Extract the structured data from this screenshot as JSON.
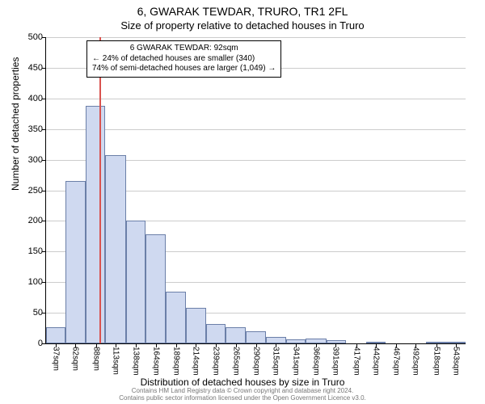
{
  "title_main": "6, GWARAK TEWDAR, TRURO, TR1 2FL",
  "title_sub": "Size of property relative to detached houses in Truro",
  "ylabel": "Number of detached properties",
  "xlabel": "Distribution of detached houses by size in Truro",
  "footer_line1": "Contains HM Land Registry data © Crown copyright and database right 2024.",
  "footer_line2": "Contains public sector information licensed under the Open Government Licence v3.0.",
  "chart": {
    "type": "histogram",
    "x_min": 25,
    "x_max": 555,
    "y_min": 0,
    "y_max": 500,
    "ytick_step": 50,
    "bar_color": "#cfd9f0",
    "bar_border": "#6b7fa8",
    "grid_color": "#cccccc",
    "reference_line": {
      "x_value": 92,
      "color": "#d9534f"
    },
    "xticks": [
      37,
      62,
      88,
      113,
      138,
      164,
      189,
      214,
      239,
      265,
      290,
      315,
      341,
      366,
      391,
      417,
      442,
      467,
      492,
      518,
      543
    ],
    "xtick_labels": [
      "37sqm",
      "62sqm",
      "88sqm",
      "113sqm",
      "138sqm",
      "164sqm",
      "189sqm",
      "214sqm",
      "239sqm",
      "265sqm",
      "290sqm",
      "315sqm",
      "341sqm",
      "366sqm",
      "391sqm",
      "417sqm",
      "442sqm",
      "467sqm",
      "492sqm",
      "518sqm",
      "543sqm"
    ],
    "bars": [
      {
        "x0": 25,
        "x1": 50,
        "y": 27
      },
      {
        "x0": 50,
        "x1": 75,
        "y": 265
      },
      {
        "x0": 75,
        "x1": 100,
        "y": 388
      },
      {
        "x0": 100,
        "x1": 126,
        "y": 307
      },
      {
        "x0": 126,
        "x1": 151,
        "y": 200
      },
      {
        "x0": 151,
        "x1": 176,
        "y": 178
      },
      {
        "x0": 176,
        "x1": 202,
        "y": 85
      },
      {
        "x0": 202,
        "x1": 227,
        "y": 58
      },
      {
        "x0": 227,
        "x1": 252,
        "y": 32
      },
      {
        "x0": 252,
        "x1": 277,
        "y": 27
      },
      {
        "x0": 277,
        "x1": 303,
        "y": 20
      },
      {
        "x0": 303,
        "x1": 328,
        "y": 11
      },
      {
        "x0": 328,
        "x1": 353,
        "y": 7
      },
      {
        "x0": 353,
        "x1": 379,
        "y": 8
      },
      {
        "x0": 379,
        "x1": 404,
        "y": 5
      },
      {
        "x0": 404,
        "x1": 429,
        "y": 0
      },
      {
        "x0": 429,
        "x1": 454,
        "y": 2
      },
      {
        "x0": 454,
        "x1": 480,
        "y": 0
      },
      {
        "x0": 480,
        "x1": 505,
        "y": 0
      },
      {
        "x0": 505,
        "x1": 530,
        "y": 2
      },
      {
        "x0": 530,
        "x1": 555,
        "y": 3
      }
    ]
  },
  "annotation": {
    "line1": "6 GWARAK TEWDAR: 92sqm",
    "line2": "← 24% of detached houses are smaller (340)",
    "line3": "74% of semi-detached houses are larger (1,049) →"
  }
}
